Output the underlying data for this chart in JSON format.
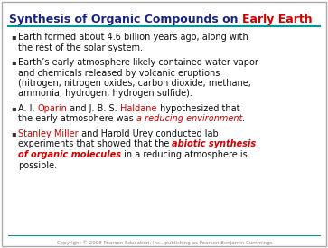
{
  "title_blue": "Synthesis of Organic Compounds on ",
  "title_red": "Early Earth",
  "bg_color": "#ffffff",
  "border_color": "#aaaaaa",
  "teal_color": "#009999",
  "title_fontsize": 9,
  "body_fontsize": 7,
  "bullet_fontsize": 7,
  "copyright_text": "Copyright © 2008 Pearson Education, Inc., publishing as Pearson Benjamin Cummings",
  "copyright_fontsize": 4,
  "bullet_lines": [
    [
      [
        {
          "t": "Earth formed about 4.6 billion years ago, along with",
          "c": "#111111",
          "b": false,
          "i": false
        }
      ],
      [
        {
          "t": "the rest of the solar system.",
          "c": "#111111",
          "b": false,
          "i": false
        }
      ]
    ],
    [
      [
        {
          "t": "Earth’s early atmosphere likely contained water vapor",
          "c": "#111111",
          "b": false,
          "i": false
        }
      ],
      [
        {
          "t": "and chemicals released by volcanic eruptions",
          "c": "#111111",
          "b": false,
          "i": false
        }
      ],
      [
        {
          "t": "(nitrogen, nitrogen oxides, carbon dioxide, methane,",
          "c": "#111111",
          "b": false,
          "i": false
        }
      ],
      [
        {
          "t": "ammonia, hydrogen, hydrogen sulfide).",
          "c": "#111111",
          "b": false,
          "i": false
        }
      ]
    ],
    [
      [
        {
          "t": "A. I. ",
          "c": "#111111",
          "b": false,
          "i": false
        },
        {
          "t": "Oparin",
          "c": "#cc0000",
          "b": false,
          "i": false
        },
        {
          "t": " and J. B. S. ",
          "c": "#111111",
          "b": false,
          "i": false
        },
        {
          "t": "Haldane",
          "c": "#cc0000",
          "b": false,
          "i": false
        },
        {
          "t": " hypothesized that",
          "c": "#111111",
          "b": false,
          "i": false
        }
      ],
      [
        {
          "t": "the early atmosphere was ",
          "c": "#111111",
          "b": false,
          "i": false
        },
        {
          "t": "a reducing environment",
          "c": "#cc0000",
          "b": false,
          "i": true
        },
        {
          "t": ".",
          "c": "#111111",
          "b": false,
          "i": false
        }
      ]
    ],
    [
      [
        {
          "t": "Stanley Miller",
          "c": "#cc0000",
          "b": false,
          "i": false
        },
        {
          "t": " and Harold Urey conducted lab",
          "c": "#111111",
          "b": false,
          "i": false
        }
      ],
      [
        {
          "t": "experiments that showed that the ",
          "c": "#111111",
          "b": false,
          "i": false
        },
        {
          "t": "abiotic synthesis",
          "c": "#cc0000",
          "b": true,
          "i": true
        }
      ],
      [
        {
          "t": "of ",
          "c": "#cc0000",
          "b": true,
          "i": true
        },
        {
          "t": "organic molecules",
          "c": "#cc0000",
          "b": true,
          "i": true
        },
        {
          "t": " in a reducing atmosphere is",
          "c": "#111111",
          "b": false,
          "i": false
        }
      ],
      [
        {
          "t": "possible.",
          "c": "#111111",
          "b": false,
          "i": false
        }
      ]
    ]
  ]
}
